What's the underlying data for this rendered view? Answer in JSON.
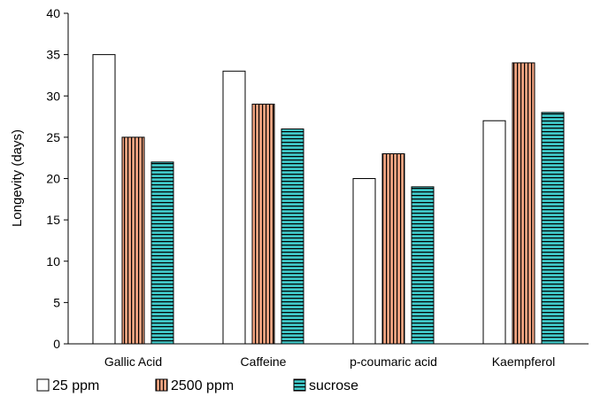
{
  "chart_data": {
    "type": "bar",
    "ylabel": "Longevity (days)",
    "xlabel": "",
    "ylim": [
      0,
      40
    ],
    "yticks": [
      0,
      5,
      10,
      15,
      20,
      25,
      30,
      35,
      40
    ],
    "grid": false,
    "legend_position": "bottom",
    "categories": [
      "Gallic Acid",
      "Caffeine",
      "p-coumaric acid",
      "Kaempferol"
    ],
    "series": [
      {
        "name": "25 ppm",
        "values": [
          35,
          33,
          20,
          27
        ],
        "fill": "#ffffff",
        "pattern": "none"
      },
      {
        "name": "2500 ppm",
        "values": [
          25,
          29,
          23,
          34
        ],
        "fill": "#f4a582",
        "pattern": "vertical-stripes"
      },
      {
        "name": "sucrose",
        "values": [
          22,
          26,
          19,
          28
        ],
        "fill": "#40c8c8",
        "pattern": "horizontal-stripes"
      }
    ]
  }
}
